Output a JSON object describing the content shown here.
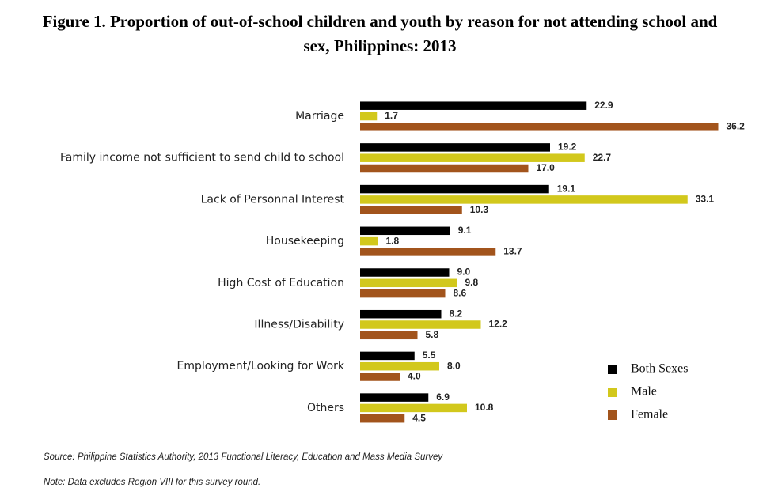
{
  "chart_data": {
    "type": "hbar",
    "title": "Figure 1. Proportion of out-of-school children and youth by reason for not attending school and sex, Philippines: 2013",
    "categories": [
      "Marriage",
      "Family income not sufficient to send child to school",
      "Lack of Personnal Interest",
      "Housekeeping",
      "High Cost of Education",
      "Illness/Disability",
      "Employment/Looking for Work",
      "Others"
    ],
    "series": [
      {
        "name": "Both Sexes",
        "color": "#000000",
        "values": [
          22.9,
          19.2,
          19.1,
          9.1,
          9.0,
          8.2,
          5.5,
          6.9
        ],
        "value_labels": [
          "22.9",
          "19.2",
          "19.1",
          "9.1",
          "9.0",
          "8.2",
          "5.5",
          "6.9"
        ]
      },
      {
        "name": "Male",
        "color": "#d2c81c",
        "values": [
          1.7,
          22.7,
          33.1,
          1.8,
          9.8,
          12.2,
          8.0,
          10.8
        ],
        "value_labels": [
          "1.7",
          "22.7",
          "33.1",
          "1.8",
          "9.8",
          "12.2",
          "8.0",
          "10.8"
        ]
      },
      {
        "name": "Female",
        "color": "#a2541c",
        "values": [
          36.2,
          17.0,
          10.3,
          13.7,
          8.6,
          5.8,
          4.0,
          4.5
        ],
        "value_labels": [
          "36.2",
          "17.0",
          "10.3",
          "13.7",
          "8.6",
          "5.8",
          "4.0",
          "4.5"
        ]
      }
    ],
    "source": "Source: Philippine Statistics Authority, 2013 Functional Literacy, Education and Mass Media Survey",
    "note": "Note: Data excludes Region VIII for this survey round."
  }
}
